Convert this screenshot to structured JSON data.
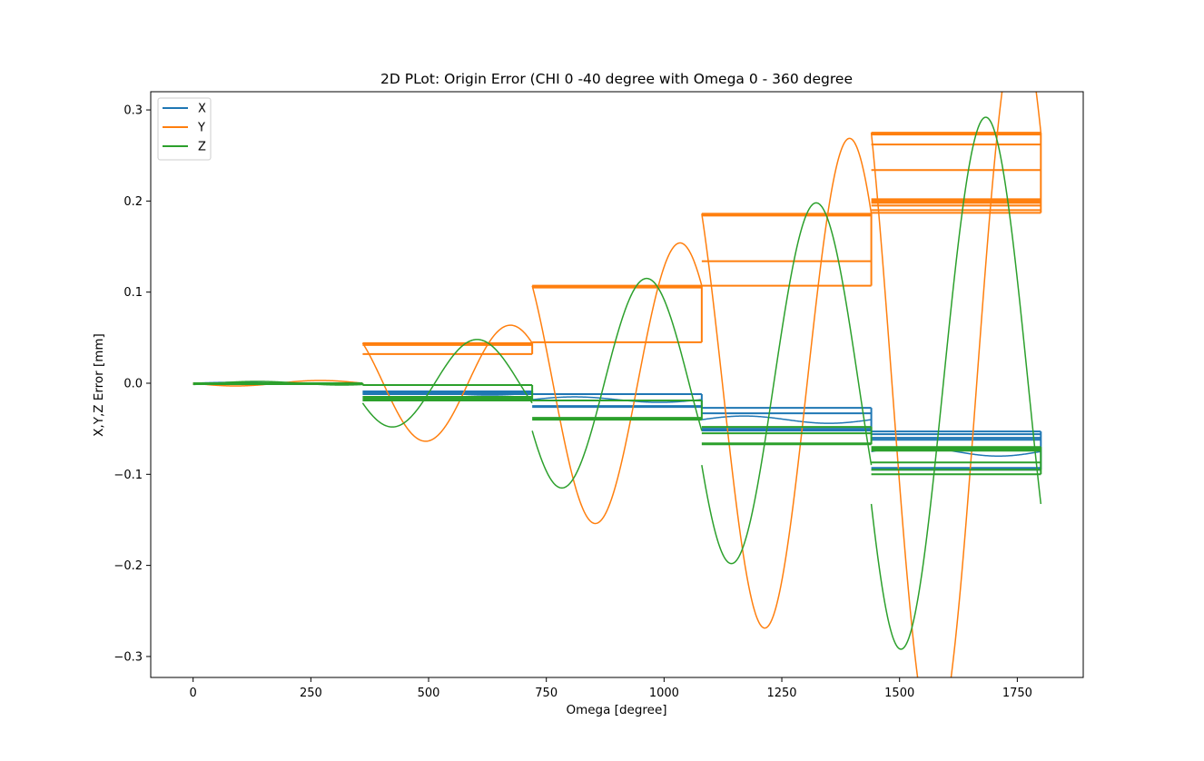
{
  "chart_data": {
    "type": "line",
    "title": "2D PLot: Origin Error (CHI 0 -40 degree with Omega 0 - 360 degree",
    "xlabel": "Omega [degree]",
    "ylabel": "X,Y,Z Error [mm]",
    "xlim": [
      -90,
      1890
    ],
    "ylim": [
      -0.323,
      0.32
    ],
    "xticks": [
      0,
      250,
      500,
      750,
      1000,
      1250,
      1500,
      1750
    ],
    "xtick_labels": [
      "0",
      "250",
      "500",
      "750",
      "1000",
      "1250",
      "1500",
      "1750"
    ],
    "yticks": [
      -0.3,
      -0.2,
      -0.1,
      0.0,
      0.1,
      0.2,
      0.3
    ],
    "ytick_labels": [
      "−0.3",
      "−0.2",
      "−0.1",
      "0.0",
      "0.1",
      "0.2",
      "0.3"
    ],
    "grid": false,
    "legend_position": "top-left",
    "omega_segments": [
      [
        0,
        360
      ],
      [
        360,
        720
      ],
      [
        720,
        1080
      ],
      [
        1080,
        1440
      ],
      [
        1440,
        1800
      ]
    ],
    "series": [
      {
        "name": "X",
        "color": "#1f77b4",
        "segment_baselines": [
          0.0,
          -0.011,
          -0.018,
          -0.04,
          -0.075
        ],
        "segment_step_levels": [
          [
            0.0,
            -0.001
          ],
          [
            -0.009,
            -0.01,
            -0.011,
            -0.012
          ],
          [
            -0.012,
            -0.025,
            -0.026
          ],
          [
            -0.027,
            -0.033,
            -0.05,
            -0.052
          ],
          [
            -0.053,
            -0.056,
            -0.06,
            -0.062,
            -0.093,
            -0.095
          ]
        ]
      },
      {
        "name": "Y",
        "color": "#ff7f0e",
        "segment_amplitudes": [
          0.003,
          0.047,
          0.113,
          0.198,
          0.292
        ],
        "segment_step_levels": [
          [
            0.0,
            -0.001
          ],
          [
            0.044,
            0.043,
            0.042,
            0.032
          ],
          [
            0.107,
            0.106,
            0.105,
            0.045
          ],
          [
            0.186,
            0.185,
            0.184,
            0.134,
            0.107
          ],
          [
            0.275,
            0.273,
            0.262,
            0.234,
            0.202,
            0.2,
            0.198,
            0.195,
            0.19,
            0.187
          ]
        ]
      },
      {
        "name": "Z",
        "color": "#2ca02c",
        "segment_amplitudes": [
          0.003,
          0.048,
          0.115,
          0.198,
          0.292
        ],
        "segment_step_levels": [
          [
            -0.001,
            0.0
          ],
          [
            -0.002,
            -0.015,
            -0.017,
            -0.019
          ],
          [
            -0.019,
            -0.038,
            -0.04
          ],
          [
            -0.048,
            -0.055,
            -0.066,
            -0.067
          ],
          [
            -0.07,
            -0.072,
            -0.074,
            -0.087,
            -0.095,
            -0.1
          ]
        ]
      }
    ]
  }
}
